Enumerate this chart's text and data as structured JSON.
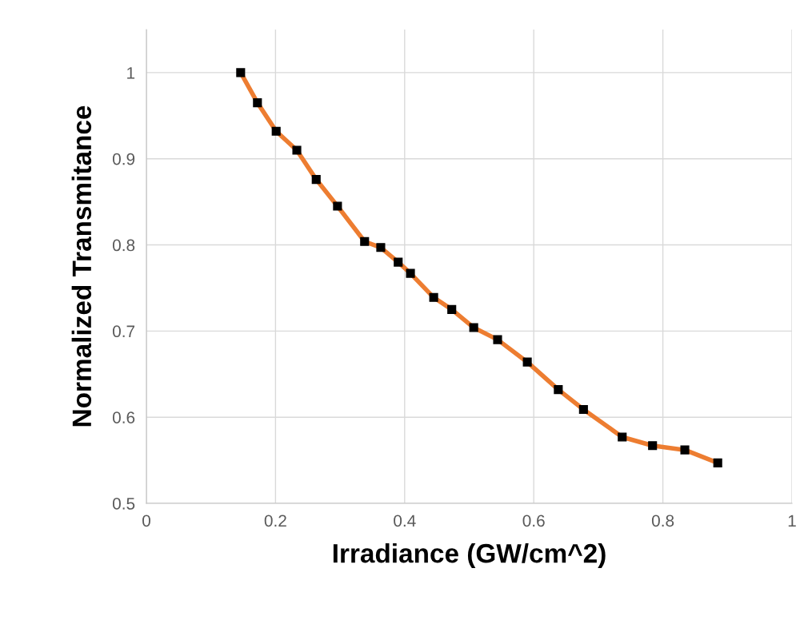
{
  "chart_data": {
    "type": "line",
    "xlabel": "Irradiance (GW/cm^2)",
    "ylabel": "Normalized Transmitance",
    "x": [
      0.146,
      0.172,
      0.201,
      0.233,
      0.263,
      0.296,
      0.338,
      0.363,
      0.39,
      0.409,
      0.445,
      0.473,
      0.507,
      0.544,
      0.59,
      0.638,
      0.677,
      0.737,
      0.784,
      0.834,
      0.885
    ],
    "series": [
      {
        "color": "#ed7d31",
        "values": [
          1.0,
          0.965,
          0.932,
          0.91,
          0.876,
          0.845,
          0.804,
          0.797,
          0.78,
          0.767,
          0.739,
          0.725,
          0.704,
          0.69,
          0.664,
          0.632,
          0.609,
          0.577,
          0.567,
          0.562,
          0.547
        ]
      }
    ],
    "xlim": [
      0,
      1
    ],
    "xticks": [
      0,
      0.2,
      0.4,
      0.6,
      0.8,
      1
    ],
    "ylim": [
      0.5,
      1.05
    ],
    "yticks": [
      0.5,
      0.6,
      0.7,
      0.8,
      0.9,
      1
    ],
    "grid": true,
    "marker": "square",
    "line_style": "solid",
    "legend": false
  }
}
